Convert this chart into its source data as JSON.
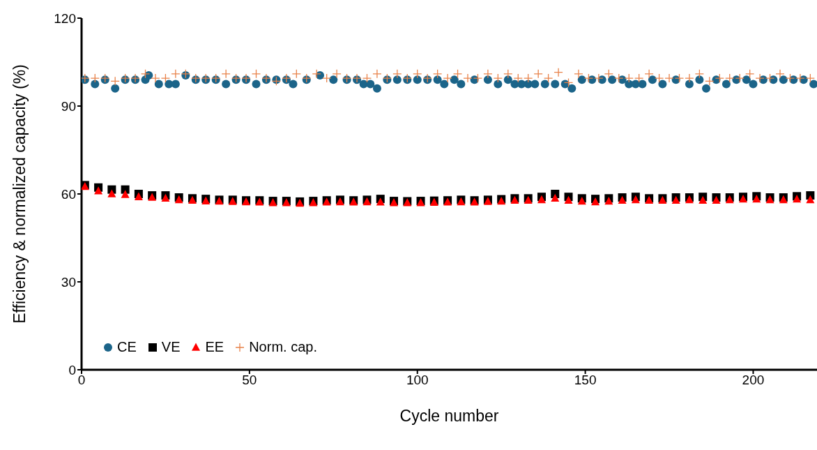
{
  "chart_data": {
    "type": "scatter",
    "xlabel": "Cycle number",
    "ylabel": "Efficiency & normalized capacity (%)",
    "xlim": [
      0,
      219
    ],
    "xticks": [
      0,
      50,
      100,
      150,
      200
    ],
    "ylim": [
      0,
      120
    ],
    "yticks": [
      0,
      30,
      60,
      90,
      120
    ],
    "grid": false,
    "legend": "bottom left",
    "series": [
      {
        "name": "CE",
        "color": "#1b6489",
        "marker": "circle",
        "x": [
          1,
          4,
          7,
          10,
          13,
          16,
          19,
          20,
          23,
          26,
          28,
          31,
          34,
          37,
          40,
          43,
          46,
          49,
          52,
          55,
          58,
          61,
          63,
          67,
          71,
          75,
          79,
          82,
          84,
          86,
          88,
          91,
          94,
          97,
          100,
          103,
          106,
          108,
          111,
          113,
          117,
          121,
          124,
          127,
          129,
          131,
          133,
          135,
          138,
          141,
          144,
          146,
          149,
          152,
          155,
          158,
          161,
          163,
          165,
          167,
          170,
          173,
          177,
          181,
          184,
          186,
          189,
          192,
          195,
          198,
          200,
          203,
          206,
          209,
          212,
          215,
          218
        ],
        "values": [
          99,
          97.5,
          99,
          96,
          99,
          99,
          99,
          100.5,
          97.5,
          97.5,
          97.5,
          100.5,
          99,
          99,
          99,
          97.5,
          99,
          99,
          97.5,
          99,
          99,
          99,
          97.5,
          99,
          100.5,
          99,
          99,
          99,
          97.5,
          97.5,
          96,
          99,
          99,
          99,
          99,
          99,
          99,
          97.5,
          99,
          97.5,
          99,
          99,
          97.5,
          99,
          97.5,
          97.5,
          97.5,
          97.5,
          97.5,
          97.5,
          97.5,
          96,
          99,
          99,
          99,
          99,
          99,
          97.5,
          97.5,
          97.5,
          99,
          97.5,
          99,
          97.5,
          99,
          96,
          99,
          97.5,
          99,
          99,
          97.5,
          99,
          99,
          99,
          99,
          99,
          97.5
        ]
      },
      {
        "name": "VE",
        "color": "#000000",
        "marker": "square",
        "x": [
          1,
          5,
          9,
          13,
          17,
          21,
          25,
          29,
          33,
          37,
          41,
          45,
          49,
          53,
          57,
          61,
          65,
          69,
          73,
          77,
          81,
          85,
          89,
          93,
          97,
          101,
          105,
          109,
          113,
          117,
          121,
          125,
          129,
          133,
          137,
          141,
          145,
          149,
          153,
          157,
          161,
          165,
          169,
          173,
          177,
          181,
          185,
          189,
          193,
          197,
          201,
          205,
          209,
          213,
          217
        ],
        "values": [
          63,
          62.2,
          61.5,
          61.5,
          60,
          59.5,
          59.5,
          58.8,
          58.5,
          58.3,
          58,
          58,
          57.8,
          57.8,
          57.6,
          57.6,
          57.4,
          57.6,
          57.8,
          58,
          57.8,
          58,
          58.3,
          57.6,
          57.5,
          57.6,
          57.7,
          57.8,
          58,
          57.8,
          58,
          58.2,
          58.5,
          58.5,
          59,
          60,
          59,
          58.5,
          58.3,
          58.5,
          58.8,
          59,
          58.5,
          58.5,
          58.8,
          58.8,
          59,
          58.8,
          58.8,
          59,
          59.2,
          58.8,
          58.8,
          59.2,
          59.5
        ]
      },
      {
        "name": "EE",
        "color": "#ff0000",
        "marker": "triangle",
        "x": [
          1,
          5,
          9,
          13,
          17,
          21,
          25,
          29,
          33,
          37,
          41,
          45,
          49,
          53,
          57,
          61,
          65,
          69,
          73,
          77,
          81,
          85,
          89,
          93,
          97,
          101,
          105,
          109,
          113,
          117,
          121,
          125,
          129,
          133,
          137,
          141,
          145,
          149,
          153,
          157,
          161,
          165,
          169,
          173,
          177,
          181,
          185,
          189,
          193,
          197,
          201,
          205,
          209,
          213,
          217
        ],
        "values": [
          62.5,
          61,
          60,
          59.8,
          59,
          58.8,
          58.5,
          58,
          57.8,
          57.6,
          57.5,
          57.4,
          57.3,
          57.2,
          57,
          57,
          56.8,
          57,
          57.2,
          57.3,
          57.2,
          57.3,
          57.2,
          57,
          57,
          57,
          57.1,
          57.2,
          57.3,
          57.2,
          57.4,
          57.5,
          57.8,
          57.8,
          58,
          58.5,
          57.8,
          57.5,
          57.3,
          57.5,
          57.8,
          58,
          57.8,
          57.8,
          57.8,
          58,
          57.8,
          57.8,
          58,
          58.2,
          58.2,
          58,
          58,
          58.2,
          58
        ]
      },
      {
        "name": "Norm. cap.",
        "color": "#e8824a",
        "marker": "cross",
        "x": [
          1,
          4,
          7,
          10,
          13,
          16,
          19,
          22,
          25,
          28,
          31,
          34,
          37,
          40,
          43,
          46,
          49,
          52,
          55,
          58,
          61,
          64,
          67,
          70,
          73,
          76,
          79,
          82,
          85,
          88,
          91,
          94,
          97,
          100,
          103,
          106,
          109,
          112,
          115,
          118,
          121,
          124,
          127,
          130,
          133,
          136,
          139,
          142,
          145,
          148,
          151,
          154,
          157,
          160,
          163,
          166,
          169,
          172,
          175,
          178,
          181,
          184,
          187,
          190,
          193,
          196,
          199,
          202,
          205,
          208,
          211,
          214,
          217
        ],
        "values": [
          99.5,
          99.5,
          99.5,
          98.5,
          99.5,
          99.5,
          101,
          99.5,
          99.5,
          101,
          101,
          99.5,
          99.5,
          99.5,
          101,
          99.5,
          99.5,
          101,
          99.5,
          98.5,
          99.5,
          101,
          99.5,
          101,
          99.5,
          101,
          99.5,
          99.5,
          99.5,
          101,
          99.5,
          101,
          99.5,
          101,
          99.5,
          101,
          99.5,
          101,
          99.5,
          99.5,
          101,
          99.5,
          101,
          99.5,
          99.5,
          101,
          99.5,
          101.5,
          98,
          101,
          99.5,
          99.5,
          101,
          99.5,
          99.5,
          99.5,
          101,
          99.5,
          99.5,
          99.5,
          99.5,
          101,
          98.5,
          99.5,
          99.5,
          99.5,
          101,
          99.5,
          99.5,
          101,
          99.5,
          99.5,
          99.5
        ]
      }
    ]
  }
}
